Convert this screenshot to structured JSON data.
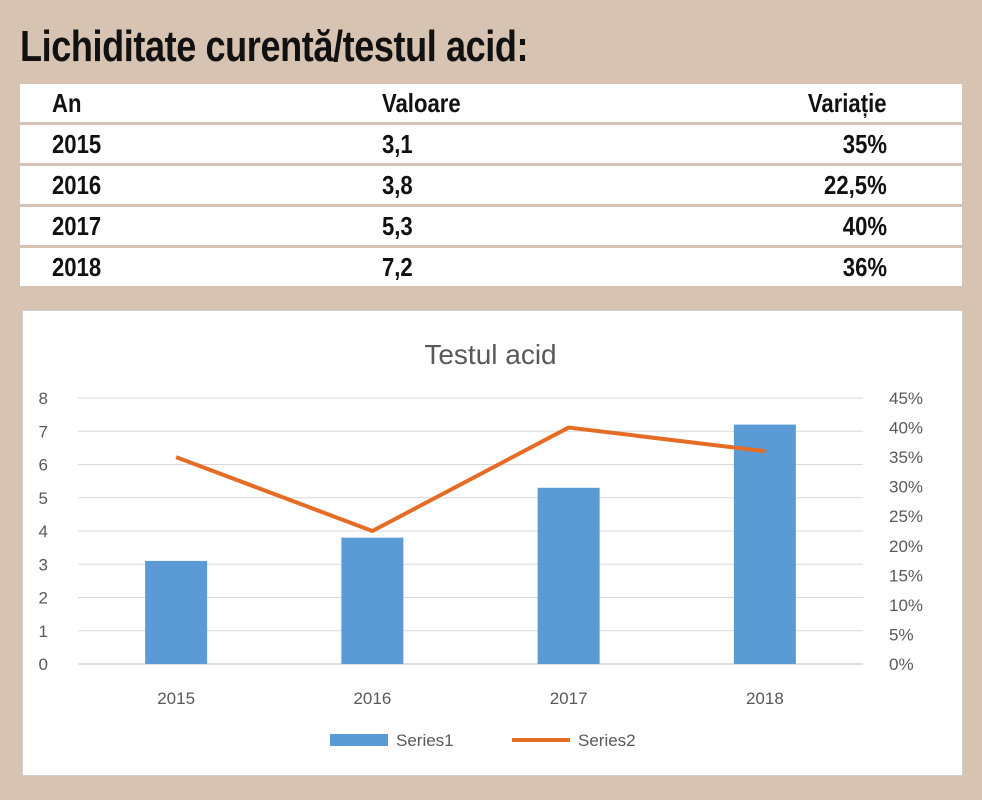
{
  "heading": "Lichiditate curentă/testul acid:",
  "table": {
    "headers": [
      "An",
      "Valoare",
      "Variație"
    ],
    "rows": [
      [
        "2015",
        "3,1",
        "35%"
      ],
      [
        "2016",
        "3,8",
        "22,5%"
      ],
      [
        "2017",
        "5,3",
        "40%"
      ],
      [
        "2018",
        "7,2",
        "36%"
      ]
    ]
  },
  "colors": {
    "bar": "#5b9bd5",
    "line": "#e46c24"
  },
  "chart_data": {
    "type": "bar",
    "title": "Testul acid",
    "categories": [
      "2015",
      "2016",
      "2017",
      "2018"
    ],
    "series": [
      {
        "name": "Series1",
        "type": "bar",
        "axis": "left",
        "values": [
          3.1,
          3.8,
          5.3,
          7.2
        ]
      },
      {
        "name": "Series2",
        "type": "line",
        "axis": "right",
        "values": [
          35,
          22.5,
          40,
          36
        ]
      }
    ],
    "ylim": [
      0,
      8
    ],
    "y_ticks": [
      "0",
      "1",
      "2",
      "3",
      "4",
      "5",
      "6",
      "7",
      "8"
    ],
    "y2lim": [
      0,
      45
    ],
    "y2_ticks": [
      "0%",
      "5%",
      "10%",
      "15%",
      "20%",
      "25%",
      "30%",
      "35%",
      "40%",
      "45%"
    ],
    "grid": true,
    "legend": "bottom"
  }
}
